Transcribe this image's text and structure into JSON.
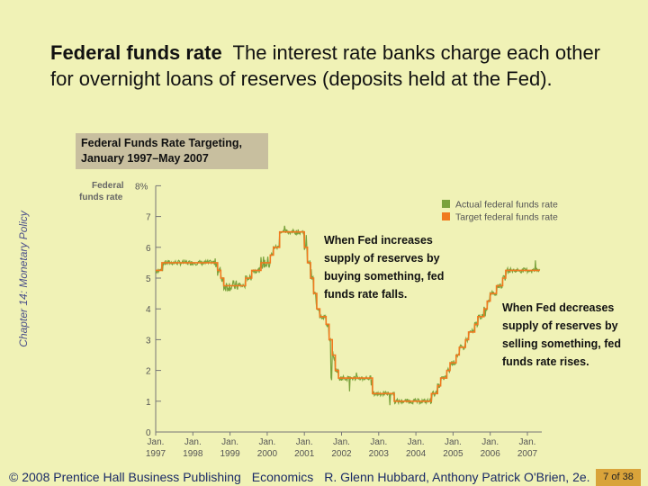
{
  "slide": {
    "title_bold": "Federal funds rate",
    "title_rest": "The interest rate banks charge each other for overnight loans of reserves (deposits held at the Fed).",
    "side_label": "Chapter 14: Monetary Policy",
    "footer": {
      "copyright": "© 2008 Prentice Hall Business Publishing",
      "book": "Economics",
      "authors": "R. Glenn Hubbard, Anthony Patrick O'Brien, 2e.",
      "page": "7 of 38"
    }
  },
  "annotations": {
    "increase": "When Fed increases supply of reserves by buying something, fed funds rate falls.",
    "decrease": "When Fed decreases supply of reserves by selling something, fed funds rate rises."
  },
  "chart_data": {
    "type": "line",
    "title": "Federal Funds Rate Targeting, January 1997–May 2007",
    "ylabel": "Federal funds rate",
    "ylim": [
      0,
      8
    ],
    "y_ticks": [
      "0",
      "1",
      "2",
      "3",
      "4",
      "5",
      "6",
      "7",
      "8%"
    ],
    "x_ticks": [
      {
        "month": "Jan.",
        "year": "1997"
      },
      {
        "month": "Jan.",
        "year": "1998"
      },
      {
        "month": "Jan.",
        "year": "1999"
      },
      {
        "month": "Jan.",
        "year": "2000"
      },
      {
        "month": "Jan.",
        "year": "2001"
      },
      {
        "month": "Jan.",
        "year": "2002"
      },
      {
        "month": "Jan.",
        "year": "2003"
      },
      {
        "month": "Jan.",
        "year": "2004"
      },
      {
        "month": "Jan.",
        "year": "2005"
      },
      {
        "month": "Jan.",
        "year": "2006"
      },
      {
        "month": "Jan.",
        "year": "2007"
      }
    ],
    "legend": "top-right",
    "series": [
      {
        "name": "Actual federal funds rate",
        "color": "#7aa23c"
      },
      {
        "name": "Target federal funds rate",
        "color": "#f07a1e"
      }
    ],
    "target_steps": [
      [
        "1997-01",
        5.25
      ],
      [
        "1997-03",
        5.5
      ],
      [
        "1998-09",
        5.25
      ],
      [
        "1998-10",
        5.0
      ],
      [
        "1998-11",
        4.75
      ],
      [
        "1999-06",
        5.0
      ],
      [
        "1999-08",
        5.25
      ],
      [
        "1999-11",
        5.5
      ],
      [
        "2000-02",
        5.75
      ],
      [
        "2000-03",
        6.0
      ],
      [
        "2000-05",
        6.5
      ],
      [
        "2001-01",
        6.0
      ],
      [
        "2001-02",
        5.5
      ],
      [
        "2001-03",
        5.0
      ],
      [
        "2001-04",
        4.5
      ],
      [
        "2001-05",
        4.0
      ],
      [
        "2001-06",
        3.75
      ],
      [
        "2001-08",
        3.5
      ],
      [
        "2001-09",
        3.0
      ],
      [
        "2001-10",
        2.5
      ],
      [
        "2001-11",
        2.0
      ],
      [
        "2001-12",
        1.75
      ],
      [
        "2002-11",
        1.25
      ],
      [
        "2003-06",
        1.0
      ],
      [
        "2004-06",
        1.25
      ],
      [
        "2004-08",
        1.5
      ],
      [
        "2004-09",
        1.75
      ],
      [
        "2004-11",
        2.0
      ],
      [
        "2004-12",
        2.25
      ],
      [
        "2005-02",
        2.5
      ],
      [
        "2005-03",
        2.75
      ],
      [
        "2005-05",
        3.0
      ],
      [
        "2005-06",
        3.25
      ],
      [
        "2005-08",
        3.5
      ],
      [
        "2005-09",
        3.75
      ],
      [
        "2005-11",
        4.0
      ],
      [
        "2005-12",
        4.25
      ],
      [
        "2006-01",
        4.5
      ],
      [
        "2006-03",
        4.75
      ],
      [
        "2006-05",
        5.0
      ],
      [
        "2006-06",
        5.25
      ],
      [
        "2007-05",
        5.25
      ]
    ]
  }
}
